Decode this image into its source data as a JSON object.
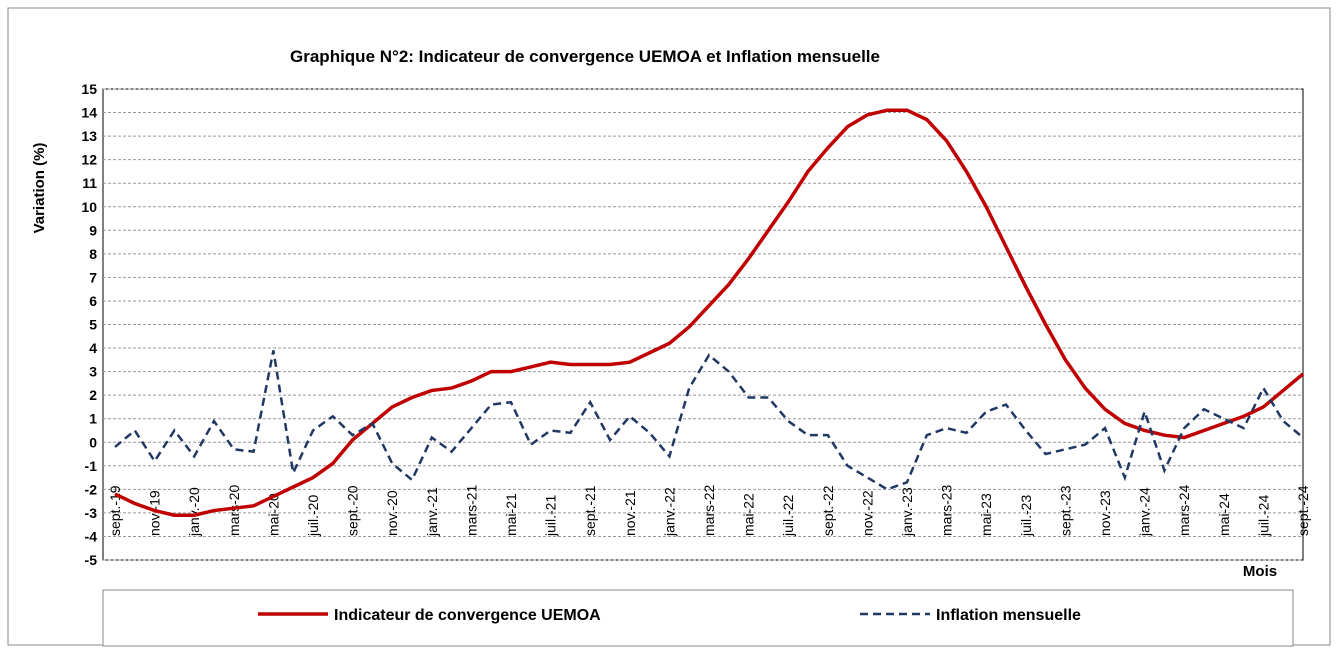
{
  "chart_data": {
    "type": "line",
    "title": "Graphique N°2: Indicateur de convergence UEMOA et Inflation mensuelle",
    "y_label": "Variation (%)",
    "x_label": "Mois",
    "categories": [
      "sept.-19",
      null,
      "nov.-19",
      null,
      "janv.-20",
      null,
      "mars-20",
      null,
      "mai-20",
      null,
      "juil.-20",
      null,
      "sept.-20",
      null,
      "nov.-20",
      null,
      "janv.-21",
      null,
      "mars-21",
      null,
      "mai-21",
      null,
      "juil.-21",
      null,
      "sept.-21",
      null,
      "nov.-21",
      null,
      "janv.-22",
      null,
      "mars-22",
      null,
      "mai-22",
      null,
      "juil.-22",
      null,
      "sept.-22",
      null,
      "nov.-22",
      null,
      "janv.-23",
      null,
      "mars-23",
      null,
      "mai-23",
      null,
      "juil.-23",
      null,
      "sept.-23",
      null,
      "nov.-23",
      null,
      "janv.-24",
      null,
      "mars-24",
      null,
      "mai-24",
      null,
      "juil.-24",
      null,
      "sept.-24"
    ],
    "series": [
      {
        "name": "Indicateur de convergence UEMOA",
        "color": "#c00000",
        "dash": false,
        "values": [
          -2.2,
          -2.6,
          -2.9,
          -3.1,
          -3.1,
          -2.9,
          -2.8,
          -2.7,
          -2.3,
          -1.9,
          -1.5,
          -0.9,
          0.1,
          0.8,
          1.5,
          1.9,
          2.2,
          2.3,
          2.6,
          3.0,
          3.0,
          3.2,
          3.4,
          3.3,
          3.3,
          3.3,
          3.4,
          3.8,
          4.2,
          4.9,
          5.8,
          6.7,
          7.8,
          9.0,
          10.2,
          11.5,
          12.5,
          13.4,
          13.9,
          14.1,
          14.1,
          13.7,
          12.8,
          11.5,
          10.0,
          8.3,
          6.6,
          5.0,
          3.5,
          2.3,
          1.4,
          0.8,
          0.5,
          0.3,
          0.2,
          0.5,
          0.8,
          1.1,
          1.5,
          2.2,
          2.9
        ]
      },
      {
        "name": "Inflation mensuelle",
        "color": "#1f3864",
        "dash": true,
        "values": [
          -0.2,
          0.5,
          -0.8,
          0.5,
          -0.6,
          0.9,
          -0.3,
          -0.4,
          3.9,
          -1.3,
          0.5,
          1.1,
          0.3,
          0.8,
          -0.9,
          -1.6,
          0.2,
          -0.4,
          0.6,
          1.6,
          1.7,
          -0.1,
          0.5,
          0.4,
          1.7,
          0.1,
          1.1,
          0.4,
          -0.6,
          2.3,
          3.7,
          3.0,
          1.9,
          1.9,
          0.9,
          0.3,
          0.3,
          -1.0,
          -1.5,
          -2.0,
          -1.7,
          0.3,
          0.6,
          0.4,
          1.3,
          1.6,
          0.5,
          -0.5,
          -0.3,
          -0.1,
          0.6,
          -1.5,
          1.3,
          -1.2,
          0.6,
          1.4,
          1.0,
          0.6,
          2.3,
          0.9,
          0.2
        ]
      }
    ],
    "ylim": [
      -5,
      15
    ],
    "yticks": [
      -5,
      -4,
      -3,
      -2,
      -1,
      0,
      1,
      2,
      3,
      4,
      5,
      6,
      7,
      8,
      9,
      10,
      11,
      12,
      13,
      14,
      15
    ],
    "grid": true
  }
}
